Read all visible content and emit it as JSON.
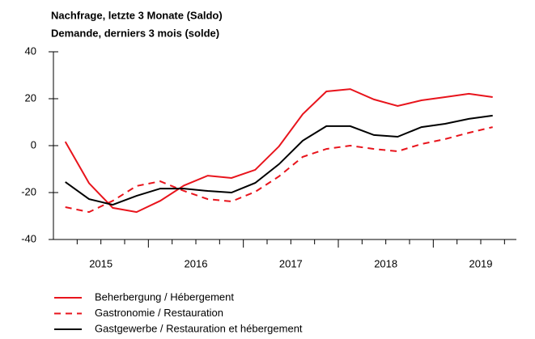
{
  "chart_data": {
    "type": "line",
    "title": "Nachfrage, letzte 3 Monate (Saldo)",
    "subtitle": "Demande, derniers 3 mois (solde)",
    "x": [
      2015.125,
      2015.375,
      2015.625,
      2015.875,
      2016.125,
      2016.375,
      2016.625,
      2016.875,
      2017.125,
      2017.375,
      2017.625,
      2017.875,
      2018.125,
      2018.375,
      2018.625,
      2018.875,
      2019.125,
      2019.375,
      2019.625
    ],
    "xlim": [
      2015,
      2019.875
    ],
    "xticks": [
      {
        "value": 2015.5,
        "label": "2015"
      },
      {
        "value": 2016.5,
        "label": "2016"
      },
      {
        "value": 2017.5,
        "label": "2017"
      },
      {
        "value": 2018.5,
        "label": "2018"
      },
      {
        "value": 2019.5,
        "label": "2019"
      }
    ],
    "ylim": [
      -40,
      40
    ],
    "yticks": [
      -40,
      -20,
      0,
      20,
      40
    ],
    "series": [
      {
        "name": "Beherbergung / Hébergement",
        "color": "#e8141c",
        "dash": false,
        "values": [
          1.7,
          -16,
          -26.5,
          -28.3,
          -23.5,
          -17,
          -12.8,
          -13.8,
          -10.3,
          -0.3,
          13.4,
          23.1,
          24.1,
          19.7,
          16.9,
          19.3,
          20.7,
          22.1,
          20.7
        ]
      },
      {
        "name": "Gastronomie / Restauration",
        "color": "#e8141c",
        "dash": true,
        "values": [
          -26.2,
          -28.3,
          -23.5,
          -17.2,
          -15.2,
          -19.3,
          -22.8,
          -23.8,
          -19.7,
          -13.1,
          -4.8,
          -1.4,
          0,
          -1.4,
          -2.4,
          0.7,
          2.8,
          5.5,
          7.9
        ]
      },
      {
        "name": "Gastgewerbe / Restauration et hébergement",
        "color": "#000000",
        "dash": false,
        "values": [
          -15.5,
          -22.8,
          -25.2,
          -21.4,
          -18.3,
          -18.3,
          -19.3,
          -20,
          -15.9,
          -7.9,
          2.1,
          8.3,
          8.3,
          4.5,
          3.8,
          7.9,
          9.3,
          11.4,
          12.8
        ]
      }
    ]
  }
}
